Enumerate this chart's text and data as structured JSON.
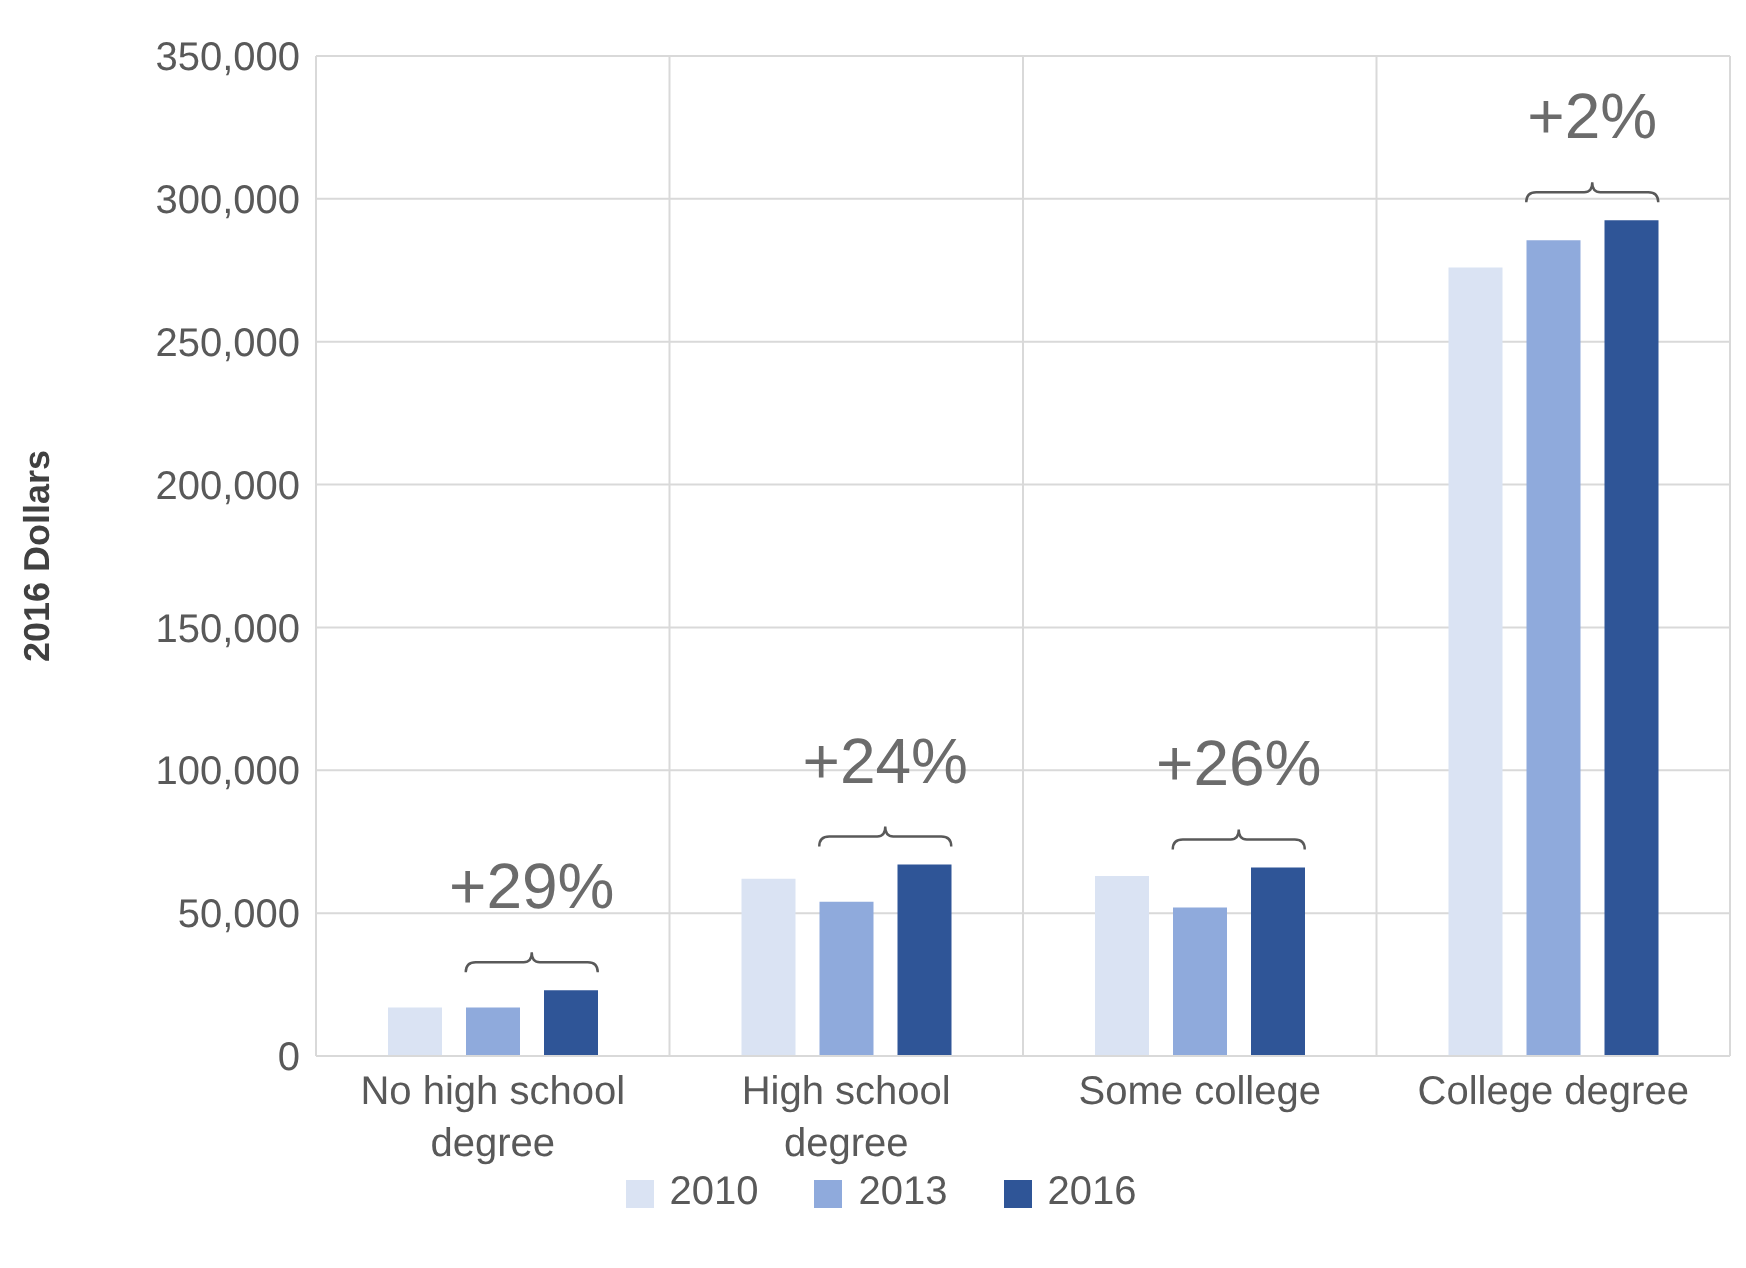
{
  "chart_data": {
    "type": "bar",
    "ylabel": "2016 Dollars",
    "categories": [
      "No high school degree",
      "High school degree",
      "Some college",
      "College degree"
    ],
    "series": [
      {
        "name": "2010",
        "color": "#dae3f3",
        "values": [
          17000,
          62000,
          63000,
          276000
        ]
      },
      {
        "name": "2013",
        "color": "#8faadc",
        "values": [
          17000,
          54000,
          52000,
          285500
        ]
      },
      {
        "name": "2016",
        "color": "#2f5597",
        "values": [
          23000,
          67000,
          66000,
          292500
        ]
      }
    ],
    "ylim": [
      0,
      350000
    ],
    "yticks": [
      {
        "value": 0,
        "label": "0"
      },
      {
        "value": 50000,
        "label": "50,000"
      },
      {
        "value": 100000,
        "label": "100,000"
      },
      {
        "value": 150000,
        "label": "150,000"
      },
      {
        "value": 200000,
        "label": "200,000"
      },
      {
        "value": 250000,
        "label": "250,000"
      },
      {
        "value": 300000,
        "label": "300,000"
      },
      {
        "value": 350000,
        "label": "350,000"
      }
    ],
    "grid": true,
    "legend": "bottom",
    "annotations": [
      "+29%",
      "+24%",
      "+26%",
      "+2%"
    ]
  }
}
